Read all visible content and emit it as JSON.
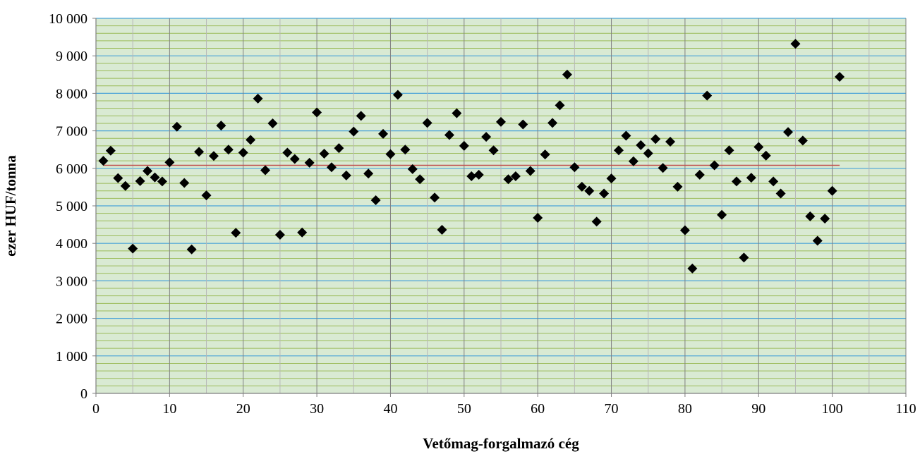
{
  "chart_data": {
    "type": "scatter",
    "title": "",
    "xlabel": "Vetőmag-forgalmazó cég",
    "ylabel": "ezer HUF/tonna",
    "xlim": [
      0,
      110
    ],
    "ylim": [
      0,
      10000
    ],
    "x_ticks": [
      0,
      10,
      20,
      30,
      40,
      50,
      60,
      70,
      80,
      90,
      100,
      110
    ],
    "x_tick_labels": [
      "0",
      "10",
      "20",
      "30",
      "40",
      "50",
      "60",
      "70",
      "80",
      "90",
      "100",
      "110"
    ],
    "y_ticks": [
      0,
      1000,
      2000,
      3000,
      4000,
      5000,
      6000,
      7000,
      8000,
      9000,
      10000
    ],
    "y_tick_labels": [
      "0",
      "1 000",
      "2 000",
      "3 000",
      "4 000",
      "5 000",
      "6 000",
      "7 000",
      "8 000",
      "9 000",
      "10 000"
    ],
    "grid": "on",
    "legend": "none",
    "colors": {
      "plot_background": "#d9ead3",
      "minor_gridline": "#9bbb59",
      "major_h_gridline": "#4aa3d8",
      "vertical_gridline": "#808080",
      "marker": "#000000",
      "average_line": "#c0504d"
    },
    "marker_shape": "diamond",
    "average_line": {
      "y": 6080,
      "x_start": 1,
      "x_end": 101
    },
    "points": [
      [
        1,
        6200
      ],
      [
        2,
        6470
      ],
      [
        3,
        5740
      ],
      [
        4,
        5530
      ],
      [
        5,
        3860
      ],
      [
        6,
        5660
      ],
      [
        7,
        5930
      ],
      [
        8,
        5760
      ],
      [
        9,
        5650
      ],
      [
        10,
        6160
      ],
      [
        11,
        7110
      ],
      [
        12,
        5610
      ],
      [
        13,
        3840
      ],
      [
        14,
        6440
      ],
      [
        15,
        5280
      ],
      [
        16,
        6330
      ],
      [
        17,
        7140
      ],
      [
        18,
        6500
      ],
      [
        19,
        4280
      ],
      [
        20,
        6420
      ],
      [
        21,
        6760
      ],
      [
        22,
        7860
      ],
      [
        23,
        5950
      ],
      [
        24,
        7200
      ],
      [
        25,
        4230
      ],
      [
        26,
        6420
      ],
      [
        27,
        6250
      ],
      [
        28,
        4290
      ],
      [
        29,
        6150
      ],
      [
        30,
        7490
      ],
      [
        31,
        6390
      ],
      [
        32,
        6030
      ],
      [
        33,
        6540
      ],
      [
        34,
        5810
      ],
      [
        35,
        6980
      ],
      [
        36,
        7400
      ],
      [
        37,
        5860
      ],
      [
        38,
        5150
      ],
      [
        39,
        6920
      ],
      [
        40,
        6380
      ],
      [
        41,
        7960
      ],
      [
        42,
        6500
      ],
      [
        43,
        5980
      ],
      [
        44,
        5710
      ],
      [
        45,
        7210
      ],
      [
        46,
        5220
      ],
      [
        47,
        4360
      ],
      [
        48,
        6890
      ],
      [
        49,
        7470
      ],
      [
        50,
        6600
      ],
      [
        51,
        5790
      ],
      [
        52,
        5830
      ],
      [
        53,
        6840
      ],
      [
        54,
        6480
      ],
      [
        55,
        7240
      ],
      [
        56,
        5710
      ],
      [
        57,
        5790
      ],
      [
        58,
        7170
      ],
      [
        59,
        5930
      ],
      [
        60,
        4680
      ],
      [
        61,
        6370
      ],
      [
        62,
        7210
      ],
      [
        63,
        7680
      ],
      [
        64,
        8500
      ],
      [
        65,
        6030
      ],
      [
        66,
        5510
      ],
      [
        67,
        5400
      ],
      [
        68,
        4580
      ],
      [
        69,
        5330
      ],
      [
        70,
        5730
      ],
      [
        71,
        6480
      ],
      [
        72,
        6870
      ],
      [
        73,
        6190
      ],
      [
        74,
        6620
      ],
      [
        75,
        6400
      ],
      [
        76,
        6780
      ],
      [
        77,
        6010
      ],
      [
        78,
        6710
      ],
      [
        79,
        5510
      ],
      [
        80,
        4350
      ],
      [
        81,
        3330
      ],
      [
        82,
        5830
      ],
      [
        83,
        7940
      ],
      [
        84,
        6080
      ],
      [
        85,
        4760
      ],
      [
        86,
        6480
      ],
      [
        87,
        5650
      ],
      [
        88,
        3620
      ],
      [
        89,
        5750
      ],
      [
        90,
        6570
      ],
      [
        91,
        6340
      ],
      [
        92,
        5650
      ],
      [
        93,
        5330
      ],
      [
        94,
        6970
      ],
      [
        95,
        9320
      ],
      [
        96,
        6740
      ],
      [
        97,
        4720
      ],
      [
        98,
        4070
      ],
      [
        99,
        4660
      ],
      [
        100,
        5400
      ],
      [
        101,
        8440
      ]
    ]
  }
}
